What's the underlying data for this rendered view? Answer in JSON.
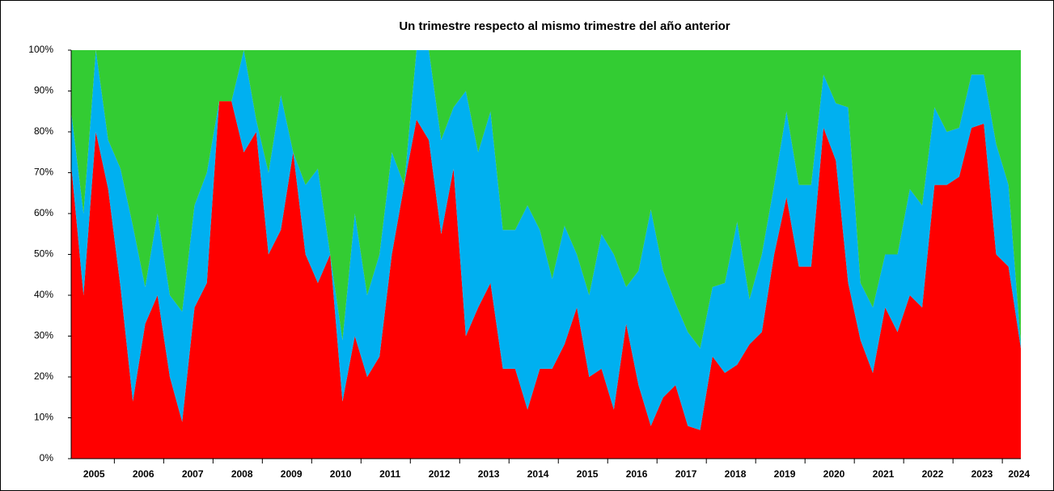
{
  "chart_data": {
    "type": "stacked_area",
    "title": "Un trimestre respecto al mismo trimestre del año anterior",
    "categories": [
      "2005",
      null,
      null,
      null,
      "2006",
      null,
      null,
      null,
      "2007",
      null,
      null,
      null,
      "2008",
      null,
      null,
      null,
      "2009",
      null,
      null,
      null,
      "2010",
      null,
      null,
      null,
      "2011",
      null,
      null,
      null,
      "2012",
      null,
      null,
      null,
      "2013",
      null,
      null,
      null,
      "2014",
      null,
      null,
      null,
      "2015",
      null,
      null,
      null,
      "2016",
      null,
      null,
      null,
      "2017",
      null,
      null,
      null,
      "2018",
      null,
      null,
      null,
      "2019",
      null,
      null,
      null,
      "2020",
      null,
      null,
      null,
      "2021",
      null,
      null,
      null,
      "2022",
      null,
      null,
      null,
      "2023",
      null,
      null,
      null,
      "2024",
      null
    ],
    "series": [
      {
        "color": "#ff0000",
        "values": [
          72,
          40,
          80,
          66,
          42,
          14,
          33,
          40,
          20,
          9,
          37,
          43,
          87.5,
          87.5,
          75,
          80,
          50,
          56,
          75,
          50,
          43,
          50,
          14,
          30,
          20,
          25,
          50,
          67,
          83,
          78,
          55,
          71,
          30,
          37,
          43,
          22,
          22,
          12,
          22,
          22,
          28,
          37,
          20,
          22,
          12,
          33,
          18,
          8,
          15,
          18,
          8,
          7,
          25,
          21,
          23,
          28,
          31,
          50,
          64,
          47,
          47,
          81,
          73,
          43,
          29,
          21,
          37,
          31,
          40,
          37,
          67,
          67,
          69,
          81,
          82,
          50,
          47,
          27
        ]
      },
      {
        "color": "#00b0f0",
        "values": [
          13,
          20,
          20,
          12,
          29,
          43,
          9,
          20,
          20,
          27,
          25,
          27,
          0,
          0,
          25,
          3,
          20,
          33,
          0,
          17,
          28,
          0,
          15,
          30,
          20,
          25,
          25,
          0,
          17,
          22,
          23,
          15,
          60,
          38,
          42,
          34,
          34,
          50,
          34,
          22,
          29,
          13,
          20,
          33,
          38,
          9,
          28,
          53,
          31,
          20,
          23,
          20,
          17,
          22,
          35,
          11,
          19,
          17,
          21,
          20,
          20,
          13,
          14,
          43,
          14,
          16,
          13,
          19,
          26,
          25,
          19,
          13,
          12,
          13,
          12,
          27,
          20,
          1
        ]
      },
      {
        "color": "#33cc33",
        "values": [
          15,
          40,
          0,
          22,
          29,
          43,
          58,
          40,
          60,
          64,
          38,
          30,
          12.5,
          12.5,
          0,
          17,
          30,
          11,
          25,
          33,
          29,
          50,
          71,
          40,
          60,
          50,
          25,
          33,
          0,
          0,
          22,
          14,
          10,
          25,
          15,
          44,
          44,
          38,
          44,
          56,
          43,
          50,
          60,
          45,
          50,
          58,
          54,
          39,
          54,
          62,
          69,
          73,
          58,
          57,
          42,
          61,
          50,
          33,
          15,
          33,
          33,
          6,
          13,
          14,
          57,
          63,
          50,
          50,
          34,
          38,
          14,
          20,
          19,
          6,
          6,
          23,
          33,
          72
        ]
      }
    ],
    "ylim": [
      0,
      100
    ],
    "yticks": [
      {
        "value": 0,
        "label": "0%"
      },
      {
        "value": 10,
        "label": "10%"
      },
      {
        "value": 20,
        "label": "20%"
      },
      {
        "value": 30,
        "label": "30%"
      },
      {
        "value": 40,
        "label": "40%"
      },
      {
        "value": 50,
        "label": "50%"
      },
      {
        "value": 60,
        "label": "60%"
      },
      {
        "value": 70,
        "label": "70%"
      },
      {
        "value": 80,
        "label": "80%"
      },
      {
        "value": 90,
        "label": "90%"
      },
      {
        "value": 100,
        "label": "100%"
      }
    ]
  }
}
